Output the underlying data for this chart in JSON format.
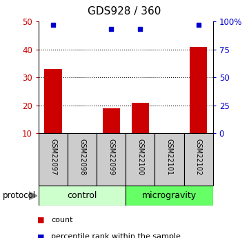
{
  "title": "GDS928 / 360",
  "samples": [
    "GSM22097",
    "GSM22098",
    "GSM22099",
    "GSM22100",
    "GSM22101",
    "GSM22102"
  ],
  "counts": [
    33,
    0,
    19,
    21,
    0,
    41
  ],
  "percentiles": [
    97,
    0,
    93,
    93,
    0,
    97
  ],
  "left_ylim": [
    10,
    50
  ],
  "left_yticks": [
    10,
    20,
    30,
    40,
    50
  ],
  "right_ylim": [
    0,
    100
  ],
  "right_yticks": [
    0,
    25,
    50,
    75,
    100
  ],
  "bar_color": "#cc0000",
  "scatter_color": "#0000cc",
  "left_tick_color": "#cc0000",
  "right_tick_color": "#0000cc",
  "control_label": "control",
  "microgravity_label": "microgravity",
  "protocol_label": "protocol",
  "control_color": "#ccffcc",
  "microgravity_color": "#66ff66",
  "sample_box_color": "#cccccc",
  "legend_count_label": "count",
  "legend_percentile_label": "percentile rank within the sample",
  "background_color": "#ffffff",
  "grid_dotted_ticks": [
    20,
    30,
    40
  ]
}
